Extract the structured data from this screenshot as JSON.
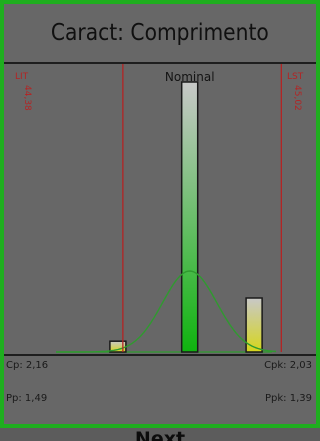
{
  "title": "Caract: Comprimento",
  "chart_data": {
    "type": "bar",
    "xlim": [
      43.9,
      45.16
    ],
    "ylim": [
      0,
      100
    ],
    "nominal": {
      "label": "Nominal",
      "x": 44.65
    },
    "lsl": {
      "label": "LIT",
      "value_label": "44,38",
      "x": 44.38
    },
    "usl": {
      "label": "LST",
      "value_label": "45,02",
      "x": 45.02
    },
    "bars": [
      {
        "x": 44.36,
        "value": 4
      },
      {
        "x": 44.65,
        "value": 100
      },
      {
        "x": 44.91,
        "value": 20
      }
    ],
    "curve": {
      "type": "normal",
      "mean": 44.65,
      "sd": 0.11,
      "peak": 30
    },
    "colors": {
      "bar_fill_top": "#c8c8c8",
      "bar_fill_bottom": "#0fb40f",
      "bar_fill_yellow": "#d6d61a",
      "bar_border": "#1a1a1a",
      "curve": "#2f9a2f",
      "limit_line": "#b32424",
      "limit_text": "#b32424",
      "axis": "#1a1a1a"
    }
  },
  "stats": {
    "cp": "Cp: 2,16",
    "cpk": "Cpk: 2,03",
    "pp": "Pp: 1,49",
    "ppk": "Ppk: 1,39"
  },
  "next_label": "Next",
  "colors": {
    "panel_border": "#1fae1f",
    "panel_bg": "#676767",
    "page_bg": "#5c5c5c"
  }
}
